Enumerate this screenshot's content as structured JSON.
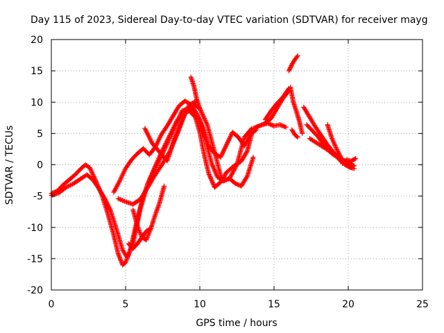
{
  "chart_data": {
    "type": "scatter",
    "title": "Day 115 of 2023, Sidereal Day-to-day VTEC variation (SDTVAR) for receiver mayg",
    "xlabel": "GPS time / hours",
    "ylabel": "SDTVAR / TECUs",
    "xlim": [
      0,
      25
    ],
    "ylim": [
      -20,
      20
    ],
    "xticks": [
      0,
      5,
      10,
      15,
      20,
      25
    ],
    "yticks": [
      -20,
      -15,
      -10,
      -5,
      0,
      5,
      10,
      15,
      20
    ],
    "xtick_labels": [
      "0",
      "5",
      "10",
      "15",
      "20",
      "25"
    ],
    "ytick_labels": [
      "-20",
      "-15",
      "-10",
      "-5",
      "0",
      "5",
      "10",
      "15",
      "20"
    ],
    "grid": true,
    "marker": "+",
    "series": [
      {
        "name": "SDTVAR",
        "color": "#ff0000",
        "tracks": [
          {
            "x": [
              0.0,
              0.4,
              0.8,
              1.2,
              1.6,
              2.0,
              2.3,
              2.6,
              3.0,
              3.4,
              3.8,
              4.2,
              4.5,
              4.8,
              5.0,
              5.3,
              5.7,
              6.1,
              6.5,
              7.0,
              7.5,
              8.0,
              8.5,
              9.0,
              9.3,
              9.7,
              10.0,
              10.3,
              10.6,
              11.0,
              11.4,
              11.8,
              12.3,
              12.8,
              13.2,
              13.5
            ],
            "y": [
              -4.6,
              -4.2,
              -3.2,
              -2.4,
              -1.6,
              -0.6,
              0.0,
              -0.5,
              -2.6,
              -4.8,
              -7.8,
              -11.2,
              -14.2,
              -16.0,
              -15.6,
              -13.8,
              -9.6,
              -5.8,
              -3.0,
              -0.2,
              2.4,
              4.8,
              7.2,
              8.4,
              8.6,
              7.6,
              5.2,
              1.6,
              -1.4,
              -3.6,
              -2.8,
              -1.2,
              -0.2,
              0.6,
              2.2,
              5.0
            ]
          },
          {
            "x": [
              0.0,
              0.5,
              1.0,
              1.5,
              2.0,
              2.4,
              2.8,
              3.2,
              3.6,
              4.0,
              4.4,
              4.8,
              5.1,
              5.5,
              6.0,
              6.5,
              7.0,
              7.5,
              8.0,
              8.5,
              8.8,
              9.2,
              9.6,
              10.0,
              10.4,
              10.8,
              11.2,
              11.6,
              12.0,
              12.4,
              12.8,
              13.2,
              13.6
            ],
            "y": [
              -4.9,
              -4.5,
              -3.6,
              -3.0,
              -2.2,
              -1.6,
              -2.4,
              -3.8,
              -5.4,
              -7.4,
              -10.4,
              -13.6,
              -14.8,
              -12.6,
              -7.0,
              -3.0,
              -0.6,
              1.8,
              4.4,
              7.0,
              8.6,
              9.0,
              8.6,
              7.2,
              3.8,
              0.2,
              -2.0,
              -2.6,
              -2.2,
              -3.0,
              -3.4,
              -1.8,
              1.2
            ]
          },
          {
            "x": [
              4.5,
              5.0,
              5.5,
              6.0,
              6.5,
              7.0,
              7.5,
              8.0,
              8.5,
              9.0,
              9.5,
              10.0,
              10.5,
              11.0,
              11.5,
              12.0,
              12.5,
              13.0,
              13.5
            ],
            "y": [
              -5.4,
              -5.9,
              -6.3,
              -5.5,
              -3.6,
              -1.6,
              0.2,
              2.2,
              5.0,
              8.2,
              9.8,
              9.0,
              6.4,
              2.0,
              -2.6,
              -2.2,
              0.0,
              4.4,
              5.8
            ]
          },
          {
            "x": [
              4.2,
              4.6,
              5.0,
              5.4,
              5.8,
              6.2,
              6.6,
              7.0,
              7.4,
              7.8,
              8.2,
              8.6,
              9.0,
              9.4,
              9.8,
              10.2,
              10.6,
              11.0,
              11.4,
              11.8,
              12.2,
              12.6,
              13.0,
              13.4,
              13.8
            ],
            "y": [
              -4.4,
              -2.6,
              -0.6,
              0.8,
              1.8,
              2.6,
              1.6,
              2.8,
              4.8,
              6.2,
              7.8,
              9.4,
              10.2,
              9.6,
              8.2,
              6.0,
              3.0,
              1.8,
              1.2,
              3.2,
              5.2,
              4.4,
              3.0,
              4.8,
              5.6
            ]
          },
          {
            "x": [
              5.5,
              5.8,
              6.1,
              6.4,
              6.7,
              7.0,
              7.3,
              7.6
            ],
            "y": [
              -7.2,
              -9.8,
              -11.6,
              -12.0,
              -10.2,
              -8.0,
              -6.0,
              -3.4
            ]
          },
          {
            "x": [
              6.3,
              6.8,
              7.3,
              7.8,
              8.3,
              8.8,
              9.3,
              9.8
            ],
            "y": [
              5.8,
              3.4,
              2.0,
              0.6,
              4.2,
              7.0,
              9.6,
              10.2
            ]
          },
          {
            "x": [
              5.2,
              5.5,
              5.8,
              6.1,
              6.4,
              6.7
            ],
            "y": [
              -12.6,
              -13.4,
              -12.6,
              -11.6,
              -10.6,
              -10.2
            ]
          },
          {
            "x": [
              9.4,
              9.6,
              9.8,
              10.0
            ],
            "y": [
              14.0,
              12.6,
              10.4,
              9.0
            ]
          },
          {
            "x": [
              13.6,
              14.0,
              14.4,
              14.8,
              15.2,
              15.6,
              16.0
            ],
            "y": [
              5.8,
              6.2,
              6.6,
              7.4,
              9.0,
              10.6,
              11.8
            ]
          },
          {
            "x": [
              13.8,
              14.2,
              14.6,
              15.0,
              15.4,
              15.8
            ],
            "y": [
              6.0,
              6.4,
              6.6,
              6.2,
              6.4,
              6.0
            ]
          },
          {
            "x": [
              14.4,
              14.8,
              15.2,
              15.6,
              16.0
            ],
            "y": [
              7.2,
              8.6,
              9.8,
              10.8,
              12.2
            ]
          },
          {
            "x": [
              16.0,
              16.2,
              16.4,
              16.6
            ],
            "y": [
              15.0,
              16.0,
              16.8,
              17.4
            ]
          },
          {
            "x": [
              16.1,
              16.3,
              16.5,
              16.7,
              16.9
            ],
            "y": [
              12.4,
              10.0,
              8.6,
              7.0,
              5.0
            ]
          },
          {
            "x": [
              16.2,
              16.4,
              16.6
            ],
            "y": [
              5.6,
              4.8,
              4.4
            ]
          },
          {
            "x": [
              17.0,
              17.4,
              17.8,
              18.2,
              18.6,
              19.0,
              19.4,
              19.8,
              20.2
            ],
            "y": [
              9.2,
              7.6,
              6.0,
              4.6,
              3.2,
              2.0,
              0.8,
              0.0,
              -0.4
            ]
          },
          {
            "x": [
              17.2,
              17.6,
              18.0,
              18.4,
              18.8,
              19.2,
              19.6,
              20.0,
              20.4
            ],
            "y": [
              6.4,
              5.4,
              4.4,
              3.0,
              2.2,
              1.6,
              0.8,
              0.4,
              -0.2
            ]
          },
          {
            "x": [
              17.4,
              17.8,
              18.2,
              18.6,
              19.0,
              19.4,
              19.8,
              20.2
            ],
            "y": [
              4.2,
              3.6,
              3.0,
              2.4,
              1.6,
              1.0,
              0.4,
              0.0
            ]
          },
          {
            "x": [
              18.6,
              18.9,
              19.2,
              19.5,
              19.8,
              20.1,
              20.4
            ],
            "y": [
              6.4,
              4.2,
              2.6,
              1.2,
              0.0,
              -0.4,
              -0.6
            ]
          },
          {
            "x": [
              19.6,
              19.9,
              20.2,
              20.5
            ],
            "y": [
              0.2,
              0.8,
              0.6,
              1.0
            ]
          }
        ]
      }
    ]
  }
}
